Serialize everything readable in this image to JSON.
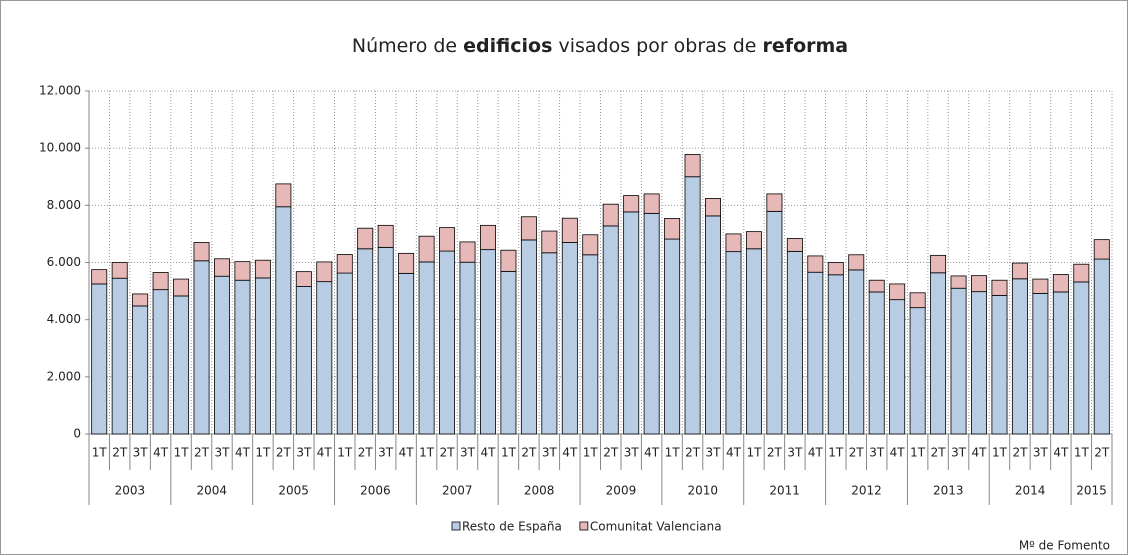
{
  "chart_data": {
    "type": "stacked_bar",
    "title": [
      {
        "text": "Número de "
      },
      {
        "text": "edificios",
        "bold": true
      },
      {
        "text": " visados por obras de "
      },
      {
        "text": "reforma",
        "bold": true
      }
    ],
    "categories": [
      "1T",
      "2T",
      "3T",
      "4T",
      "1T",
      "2T",
      "3T",
      "4T",
      "1T",
      "2T",
      "3T",
      "4T",
      "1T",
      "2T",
      "3T",
      "4T",
      "1T",
      "2T",
      "3T",
      "4T",
      "1T",
      "2T",
      "3T",
      "4T",
      "1T",
      "2T",
      "3T",
      "4T",
      "1T",
      "2T",
      "3T",
      "4T",
      "1T",
      "2T",
      "3T",
      "4T",
      "1T",
      "2T",
      "3T",
      "4T",
      "1T",
      "2T",
      "3T",
      "4T",
      "1T",
      "2T",
      "3T",
      "4T",
      "1T",
      "2T"
    ],
    "years": [
      "2003",
      "2004",
      "2005",
      "2006",
      "2007",
      "2008",
      "2009",
      "2010",
      "2011",
      "2012",
      "2013",
      "2014",
      "2015"
    ],
    "series": [
      {
        "name": "Resto de España",
        "color": "#b8cce4",
        "values": [
          5250,
          5450,
          4480,
          5050,
          4830,
          6060,
          5520,
          5380,
          5460,
          7950,
          5160,
          5330,
          5630,
          6480,
          6530,
          5620,
          6020,
          6400,
          6010,
          6450,
          5690,
          6790,
          6340,
          6700,
          6270,
          7280,
          7770,
          7720,
          6820,
          9000,
          7630,
          6380,
          6480,
          7790,
          6390,
          5660,
          5570,
          5740,
          4970,
          4700,
          4420,
          5640,
          5100,
          4980,
          4850,
          5430,
          4920,
          4970,
          5320,
          6120
        ]
      },
      {
        "name": "Comunitat Valenciana",
        "color": "#e6b9b8",
        "values": [
          500,
          550,
          420,
          600,
          590,
          640,
          610,
          650,
          620,
          800,
          520,
          690,
          650,
          720,
          770,
          700,
          900,
          820,
          710,
          850,
          740,
          810,
          760,
          850,
          700,
          760,
          570,
          680,
          720,
          780,
          610,
          620,
          600,
          610,
          450,
          570,
          430,
          530,
          410,
          550,
          520,
          610,
          430,
          560,
          530,
          550,
          500,
          610,
          620,
          680
        ]
      }
    ],
    "ylim": [
      0,
      12000
    ],
    "yticks": [
      0,
      {
        "value": 2000,
        "label": "2.000"
      },
      {
        "value": 4000,
        "label": "4.000"
      },
      {
        "value": 6000,
        "label": "6.000"
      },
      {
        "value": 8000,
        "label": "8.000"
      },
      {
        "value": 10000,
        "label": "10.000"
      },
      {
        "value": 12000,
        "label": "12.000"
      }
    ],
    "grid": true,
    "legend": "bottom",
    "source": "Mº de Fomento"
  }
}
